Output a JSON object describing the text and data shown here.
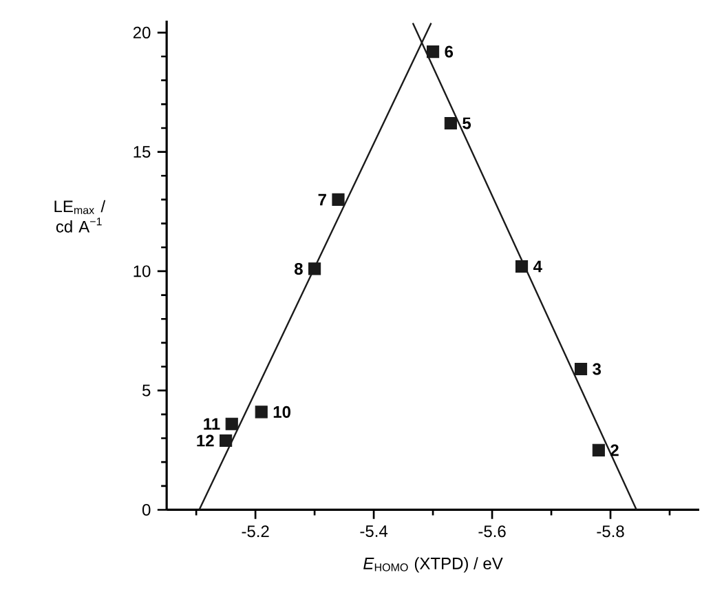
{
  "chart_data": {
    "type": "scatter",
    "xlabel": "*E*$_{HOMO}$ (XTPD) / eV",
    "ylabel": "LE$_{max}$ / cd A$^{−1}$",
    "xlim": [
      -5.05,
      -5.95
    ],
    "ylim": [
      0,
      20.5
    ],
    "xticks": [
      {
        "value": -5.1,
        "label": null
      },
      -5.2,
      {
        "value": -5.3,
        "label": null
      },
      -5.4,
      {
        "value": -5.5,
        "label": null
      },
      -5.6,
      {
        "value": -5.7,
        "label": null
      },
      -5.8,
      {
        "value": -5.9,
        "label": null
      }
    ],
    "yticks": [
      0,
      {
        "value": 1,
        "label": null
      },
      {
        "value": 2,
        "label": null
      },
      {
        "value": 3,
        "label": null
      },
      {
        "value": 4,
        "label": null
      },
      5,
      {
        "value": 6,
        "label": null
      },
      {
        "value": 7,
        "label": null
      },
      {
        "value": 8,
        "label": null
      },
      {
        "value": 9,
        "label": null
      },
      10,
      {
        "value": 11,
        "label": null
      },
      {
        "value": 12,
        "label": null
      },
      {
        "value": 13,
        "label": null
      },
      {
        "value": 14,
        "label": null
      },
      15,
      {
        "value": 16,
        "label": null
      },
      {
        "value": 17,
        "label": null
      },
      {
        "value": 18,
        "label": null
      },
      {
        "value": 19,
        "label": null
      },
      20
    ],
    "marker": "square",
    "grid": false,
    "legend": false,
    "series": [
      {
        "color": "#1a1a1a",
        "x": [
          -5.78,
          -5.75,
          -5.65,
          -5.53,
          -5.5,
          -5.34,
          -5.3,
          -5.21,
          -5.16,
          -5.15
        ],
        "values": [
          2.5,
          5.9,
          10.2,
          16.2,
          19.2,
          13.0,
          10.1,
          4.1,
          3.6,
          2.9
        ]
      },
      {
        "type": "line",
        "marker": "none",
        "color": "#1a1a1a",
        "x": [
          -5.105,
          -5.497
        ],
        "values": [
          0,
          20.4
        ]
      },
      {
        "type": "line",
        "marker": "none",
        "color": "#1a1a1a",
        "x": [
          -5.466,
          -5.844
        ],
        "values": [
          20.4,
          0
        ]
      }
    ],
    "annotations": [
      {
        "text": "2",
        "x": -5.78,
        "y": 2.5
      },
      {
        "text": "3",
        "x": -5.75,
        "y": 5.9
      },
      {
        "text": "4",
        "x": -5.65,
        "y": 10.2
      },
      {
        "text": "5",
        "x": -5.53,
        "y": 16.2
      },
      {
        "text": "6",
        "x": -5.5,
        "y": 19.2
      },
      {
        "text": "7",
        "x": -5.34,
        "y": 13.0
      },
      {
        "text": "8",
        "x": -5.3,
        "y": 10.1
      },
      {
        "text": "10",
        "x": -5.21,
        "y": 4.1
      },
      {
        "text": "11",
        "x": -5.16,
        "y": 3.6
      },
      {
        "text": "12",
        "x": -5.15,
        "y": 2.9
      }
    ]
  }
}
